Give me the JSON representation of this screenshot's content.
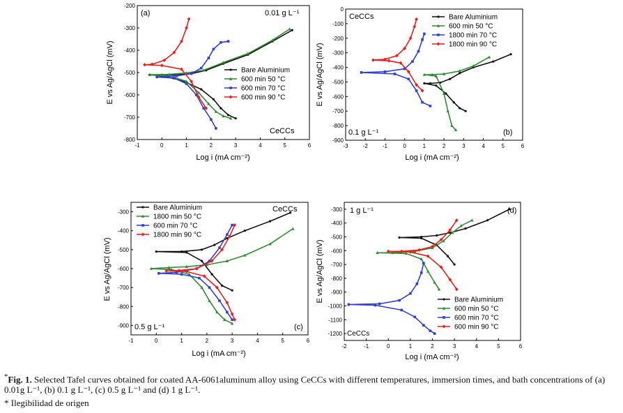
{
  "figure": {
    "caption_marker": "*",
    "caption_label": "Fig. 1.",
    "caption_text": "Selected Tafel curves obtained for coated AA-6061aluminum alloy using CeCCs with different temperatures, immersion times, and bath concentrations of (a) 0.01g L⁻¹, (b) 0.1 g L⁻¹, (c) 0.5 g L⁻¹ and (d) 1 g L⁻¹.",
    "note": "* Ilegibilidad de origen"
  },
  "colors": {
    "bare": "#111111",
    "green": "#2e8b2e",
    "blue": "#2f3fd6",
    "red": "#ee1c1c"
  },
  "chart_data": [
    {
      "type": "line",
      "panel": "(a)",
      "annotations": [
        "0.01 g L⁻¹",
        "CeCCs"
      ],
      "xlabel": "Log i (mA cm⁻²)",
      "ylabel": "E vs Ag/AgCl (mV)",
      "xlim": [
        -1,
        6
      ],
      "ylim": [
        -800,
        -200
      ],
      "xticks": [
        -1,
        0,
        1,
        2,
        3,
        4,
        5,
        6
      ],
      "yticks": [
        -800,
        -700,
        -600,
        -500,
        -400,
        -300,
        -200
      ],
      "xticklabels": [
        "-1",
        "0",
        "1",
        "2",
        "3",
        "4",
        "5",
        "6"
      ],
      "yticklabels": [
        "-800",
        "-700",
        "-600",
        "-500",
        "-400",
        "-300",
        "-200"
      ],
      "legend_position": "center-right",
      "series": [
        {
          "name": "Bare Aluminium",
          "color": "bare",
          "marker": "dot",
          "x": [
            5.3,
            4.5,
            3.5,
            2.5,
            1.8,
            1.2,
            0.6,
            0.0,
            -0.5,
            0.0,
            0.8,
            1.6,
            2.1,
            2.4,
            2.7,
            3.0
          ],
          "y": [
            -310,
            -360,
            -420,
            -460,
            -490,
            -505,
            -510,
            -510,
            -510,
            -515,
            -535,
            -575,
            -620,
            -660,
            -690,
            -705
          ]
        },
        {
          "name": "600 min 50 °C",
          "color": "green",
          "marker": "triangle",
          "x": [
            5.2,
            4.5,
            3.5,
            2.5,
            1.7,
            1.0,
            0.3,
            -0.5,
            0.3,
            1.0,
            1.5,
            1.9,
            2.2,
            2.5,
            2.8
          ],
          "y": [
            -305,
            -355,
            -415,
            -455,
            -490,
            -502,
            -508,
            -510,
            -515,
            -540,
            -590,
            -640,
            -675,
            -695,
            -705
          ]
        },
        {
          "name": "600 min 70 °C",
          "color": "blue",
          "marker": "square",
          "x": [
            2.7,
            2.4,
            2.1,
            1.9,
            1.6,
            1.2,
            0.6,
            -0.2,
            0.5,
            1.0,
            1.4,
            1.7,
            2.0,
            2.2
          ],
          "y": [
            -360,
            -365,
            -395,
            -435,
            -480,
            -505,
            -515,
            -520,
            -525,
            -550,
            -600,
            -660,
            -710,
            -750
          ]
        },
        {
          "name": "600 min 90 °C",
          "color": "red",
          "marker": "diamond",
          "x": [
            1.1,
            1.0,
            0.8,
            0.5,
            0.1,
            -0.4,
            -0.7,
            0.0,
            0.8,
            1.2,
            1.5,
            1.8
          ],
          "y": [
            -260,
            -300,
            -360,
            -410,
            -445,
            -463,
            -465,
            -468,
            -485,
            -540,
            -610,
            -660
          ]
        }
      ]
    },
    {
      "type": "line",
      "panel": "(b)",
      "annotations": [
        "CeCCs",
        "0.1 g L⁻¹"
      ],
      "xlabel": "Log i (mA cm⁻²)",
      "ylabel": "E vs Ag/AgCl (mV)",
      "xlim": [
        -3,
        6
      ],
      "ylim": [
        -900,
        0
      ],
      "xticks": [
        -3,
        -2,
        -1,
        0,
        1,
        2,
        3,
        4,
        5,
        6
      ],
      "yticks": [
        -900,
        -800,
        -700,
        -600,
        -500,
        -400,
        -300,
        -200,
        -100,
        0
      ],
      "xticklabels": [
        "-3",
        "-2",
        "-1",
        "0",
        "1",
        "2",
        "3",
        "4",
        "5",
        "6"
      ],
      "yticklabels": [
        "-900",
        "-800",
        "-700",
        "-600",
        "-500",
        "-400",
        "-300",
        "-200",
        "-100",
        "0"
      ],
      "legend_position": "top-right",
      "series": [
        {
          "name": "Bare Aluminium",
          "color": "bare",
          "marker": "dot",
          "x": [
            5.4,
            4.5,
            3.5,
            2.8,
            2.3,
            1.8,
            1.3,
            1.0,
            1.6,
            2.1,
            2.5,
            2.8,
            3.1
          ],
          "y": [
            -310,
            -360,
            -400,
            -440,
            -480,
            -505,
            -510,
            -510,
            -525,
            -580,
            -640,
            -680,
            -700
          ]
        },
        {
          "name": "600 min 50 °C",
          "color": "green",
          "marker": "triangle",
          "x": [
            4.3,
            3.5,
            2.8,
            2.0,
            1.4,
            1.0,
            1.6,
            2.0,
            2.2,
            2.4,
            2.6
          ],
          "y": [
            -330,
            -390,
            -425,
            -445,
            -450,
            -450,
            -460,
            -580,
            -700,
            -800,
            -830
          ]
        },
        {
          "name": "1800 min 70 °C",
          "color": "blue",
          "marker": "square",
          "x": [
            1.0,
            0.9,
            0.7,
            0.4,
            0.0,
            -1.0,
            -2.2,
            -0.5,
            0.2,
            0.6,
            0.9,
            1.3
          ],
          "y": [
            -170,
            -210,
            -290,
            -360,
            -410,
            -430,
            -435,
            -445,
            -480,
            -560,
            -640,
            -665
          ]
        },
        {
          "name": "1800 min 90 °C",
          "color": "red",
          "marker": "diamond",
          "x": [
            0.6,
            0.5,
            0.3,
            0.0,
            -0.4,
            -1.0,
            -1.6,
            -0.8,
            -0.2,
            0.2,
            0.6,
            0.9
          ],
          "y": [
            -70,
            -120,
            -200,
            -270,
            -320,
            -345,
            -350,
            -355,
            -370,
            -430,
            -520,
            -560
          ]
        }
      ]
    },
    {
      "type": "line",
      "panel": "(c)",
      "annotations": [
        "CeCCs",
        "0.5 g L⁻¹"
      ],
      "xlabel": "Log i (mA cm⁻²)",
      "ylabel": "E vs Ag/AgCl (mV)",
      "xlim": [
        -1,
        6
      ],
      "ylim": [
        -950,
        -250
      ],
      "xticks": [
        -1,
        0,
        1,
        2,
        3,
        4,
        5,
        6
      ],
      "yticks": [
        -900,
        -800,
        -700,
        -600,
        -500,
        -400,
        -300
      ],
      "xticklabels": [
        "-1",
        "0",
        "1",
        "2",
        "3",
        "4",
        "5",
        "6"
      ],
      "yticklabels": [
        "-900",
        "-800",
        "-700",
        "-600",
        "-500",
        "-400",
        "-300"
      ],
      "legend_position": "top-left",
      "series": [
        {
          "name": "Bare Aluminium",
          "color": "bare",
          "marker": "dot",
          "x": [
            5.3,
            4.5,
            3.5,
            2.8,
            2.3,
            1.8,
            1.0,
            0.0,
            1.2,
            1.8,
            2.2,
            2.6,
            3.0
          ],
          "y": [
            -305,
            -350,
            -400,
            -440,
            -475,
            -500,
            -510,
            -510,
            -515,
            -560,
            -630,
            -690,
            -715
          ]
        },
        {
          "name": "1800 min 50 °C",
          "color": "green",
          "marker": "triangle",
          "x": [
            5.4,
            4.5,
            3.5,
            2.8,
            2.0,
            1.2,
            0.5,
            -0.2,
            0.6,
            1.3,
            1.8,
            2.1,
            2.4,
            2.7,
            3.0
          ],
          "y": [
            -390,
            -470,
            -530,
            -560,
            -580,
            -590,
            -595,
            -600,
            -605,
            -630,
            -700,
            -770,
            -830,
            -870,
            -890
          ]
        },
        {
          "name": "600 min 70 °C",
          "color": "blue",
          "marker": "square",
          "x": [
            3.0,
            2.8,
            2.5,
            2.1,
            1.6,
            0.8,
            0.1,
            1.0,
            1.7,
            2.1,
            2.5,
            2.8,
            3.0
          ],
          "y": [
            -370,
            -420,
            -490,
            -560,
            -600,
            -620,
            -625,
            -630,
            -650,
            -700,
            -770,
            -830,
            -870
          ]
        },
        {
          "name": "1800 min 90 °C",
          "color": "red",
          "marker": "diamond",
          "x": [
            3.1,
            2.9,
            2.6,
            2.2,
            1.6,
            0.9,
            0.4,
            1.2,
            1.9,
            2.4,
            2.8,
            3.0,
            3.1
          ],
          "y": [
            -370,
            -430,
            -500,
            -560,
            -600,
            -610,
            -612,
            -615,
            -640,
            -700,
            -780,
            -840,
            -870
          ]
        }
      ]
    },
    {
      "type": "line",
      "panel": "(d)",
      "annotations": [
        "1 g L⁻¹",
        "CeCCs"
      ],
      "xlabel": "Log i (mA cm⁻²)",
      "ylabel": "E vs Ag/AgCl (mV)",
      "xlim": [
        -2,
        6
      ],
      "ylim": [
        -1250,
        -250
      ],
      "xticks": [
        -2,
        -1,
        0,
        1,
        2,
        3,
        4,
        5,
        6
      ],
      "yticks": [
        -1200,
        -1100,
        -1000,
        -900,
        -800,
        -700,
        -600,
        -500,
        -400,
        -300
      ],
      "xticklabels": [
        "-2",
        "-1",
        "0",
        "1",
        "2",
        "3",
        "4",
        "5",
        "6"
      ],
      "yticklabels": [
        "-1200",
        "-1100",
        "-1000",
        "-900",
        "-800",
        "-700",
        "-600",
        "-500",
        "-400",
        "-300"
      ],
      "legend_position": "bottom-right",
      "series": [
        {
          "name": "Bare Aluminium",
          "color": "bare",
          "marker": "dot",
          "x": [
            5.5,
            4.5,
            3.5,
            2.8,
            2.2,
            1.5,
            0.5,
            1.5,
            2.2,
            2.7,
            3.0
          ],
          "y": [
            -300,
            -380,
            -440,
            -470,
            -490,
            -500,
            -505,
            -510,
            -560,
            -640,
            -700
          ]
        },
        {
          "name": "600 min 50 °C",
          "color": "green",
          "marker": "triangle",
          "x": [
            3.8,
            3.3,
            2.9,
            2.5,
            2.0,
            1.2,
            0.2,
            -0.5,
            0.8,
            1.5,
            1.8,
            2.1,
            2.3
          ],
          "y": [
            -380,
            -420,
            -470,
            -530,
            -580,
            -605,
            -615,
            -615,
            -620,
            -660,
            -750,
            -830,
            -880
          ]
        },
        {
          "name": "600 min 70 °C",
          "color": "blue",
          "marker": "square",
          "x": [
            1.6,
            1.5,
            1.3,
            1.0,
            0.5,
            -0.4,
            -1.8,
            -0.6,
            0.6,
            1.2,
            1.6,
            1.9,
            2.1
          ],
          "y": [
            -690,
            -760,
            -840,
            -910,
            -960,
            -985,
            -990,
            -995,
            -1030,
            -1080,
            -1140,
            -1180,
            -1200
          ]
        },
        {
          "name": "600 min 90 °C",
          "color": "red",
          "marker": "diamond",
          "x": [
            3.1,
            2.8,
            2.4,
            2.0,
            1.4,
            0.6,
            0.0,
            1.0,
            1.8,
            2.4,
            2.8,
            3.1
          ],
          "y": [
            -380,
            -450,
            -520,
            -570,
            -595,
            -605,
            -605,
            -610,
            -640,
            -720,
            -810,
            -880
          ]
        }
      ]
    }
  ]
}
